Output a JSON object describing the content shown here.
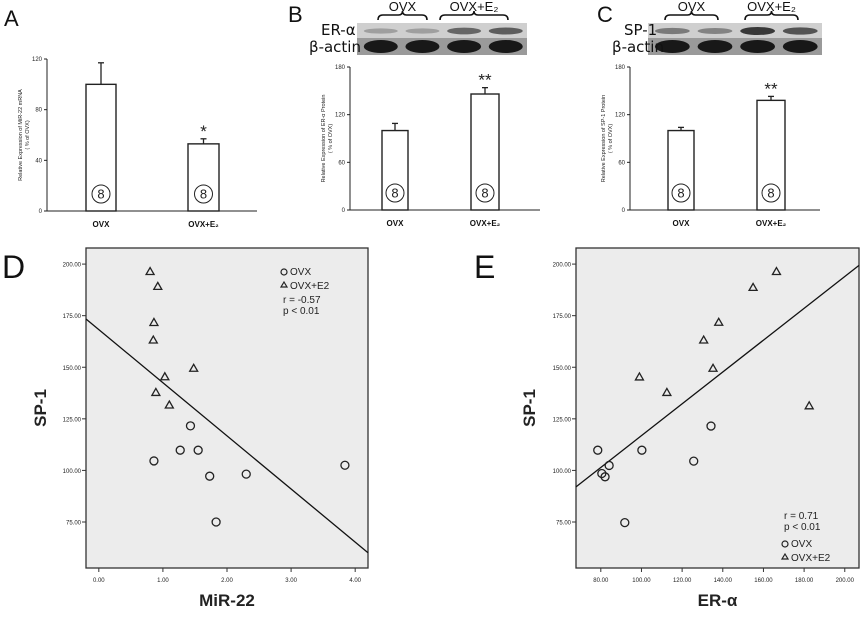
{
  "chart_data": [
    {
      "panel": "A",
      "type": "bar",
      "categories": [
        "OVX",
        "OVX+E2"
      ],
      "category_labels": [
        "OVX",
        "OVX+E₂"
      ],
      "values": [
        100,
        53
      ],
      "error_upper": [
        117,
        57
      ],
      "n_labels": [
        "8",
        "8"
      ],
      "significance": [
        "",
        "*"
      ],
      "ylabel": "Relative Expression of MiR-22 mRNA",
      "ylabel2": "( % of OVX)",
      "ylim": [
        0,
        120
      ],
      "yticks": [
        "0",
        "40",
        "80",
        "120"
      ]
    },
    {
      "panel": "B",
      "type": "bar",
      "categories": [
        "OVX",
        "OVX+E2"
      ],
      "category_labels": [
        "OVX",
        "OVX+E₂"
      ],
      "values": [
        100,
        146
      ],
      "error_upper": [
        109,
        154
      ],
      "n_labels": [
        "8",
        "8"
      ],
      "significance": [
        "",
        "**"
      ],
      "ylabel": "Relative Expression of ER-α Protein",
      "ylabel2": "( % of OVX)",
      "ylim": [
        0,
        180
      ],
      "yticks": [
        "0",
        "60",
        "120",
        "180"
      ],
      "blot": {
        "groups": [
          "OVX",
          "OVX+E₂"
        ],
        "rows": [
          "ER-α",
          "β-actin"
        ],
        "band_intensity": [
          [
            0.25,
            0.25,
            0.55,
            0.6
          ],
          [
            0.95,
            0.95,
            0.95,
            0.95
          ]
        ]
      }
    },
    {
      "panel": "C",
      "type": "bar",
      "categories": [
        "OVX",
        "OVX+E2"
      ],
      "category_labels": [
        "OVX",
        "OVX+E₂"
      ],
      "values": [
        100,
        138
      ],
      "error_upper": [
        104,
        143
      ],
      "n_labels": [
        "8",
        "8"
      ],
      "significance": [
        "",
        "**"
      ],
      "ylabel": "Relative Expression of SP-1 Protein",
      "ylabel2": "( % of OVX)",
      "ylim": [
        0,
        180
      ],
      "yticks": [
        "0",
        "60",
        "120",
        "180"
      ],
      "blot": {
        "groups": [
          "OVX",
          "OVX+E₂"
        ],
        "rows": [
          "SP-1",
          "β-actin"
        ],
        "band_intensity": [
          [
            0.45,
            0.4,
            0.8,
            0.65
          ],
          [
            0.95,
            0.95,
            0.95,
            0.95
          ]
        ]
      }
    },
    {
      "panel": "D",
      "type": "scatter",
      "xlabel": "MiR-22",
      "ylabel": "SP-1",
      "xlim": [
        -0.2,
        4.2
      ],
      "ylim": [
        52.7,
        207.8
      ],
      "xticks": [
        0,
        1,
        2,
        3,
        4
      ],
      "xtick_labels": [
        "0.00",
        "1.00",
        "2.00",
        "3.00",
        "4.00"
      ],
      "yticks": [
        75,
        100,
        125,
        150,
        175,
        200
      ],
      "ytick_labels": [
        "75.00",
        "100.00",
        "125.00",
        "150.00",
        "175.00",
        "200.00"
      ],
      "legend": [
        "OVX",
        "OVX+E2"
      ],
      "legend_position": "top-right",
      "annotation": [
        "r = -0.57",
        "p < 0.01"
      ],
      "series": [
        {
          "name": "OVX",
          "marker": "circle",
          "x": [
            0.86,
            1.27,
            1.43,
            1.55,
            1.73,
            2.3,
            1.83,
            3.84
          ],
          "y": [
            104.6,
            109.8,
            121.6,
            109.8,
            97.2,
            98.2,
            75.0,
            102.5
          ]
        },
        {
          "name": "OVX+E2",
          "marker": "triangle",
          "x": [
            0.8,
            0.92,
            0.86,
            0.85,
            1.03,
            1.48,
            0.89,
            1.1
          ],
          "y": [
            196.4,
            189.2,
            171.7,
            163.2,
            145.4,
            149.5,
            137.8,
            131.7
          ]
        }
      ],
      "fit_line": {
        "x": [
          -0.2,
          4.2
        ],
        "y": [
          173.4,
          60.1
        ]
      }
    },
    {
      "panel": "E",
      "type": "scatter",
      "xlabel": "ER-α",
      "ylabel": "SP-1",
      "xlim": [
        67.8,
        207.0
      ],
      "ylim": [
        52.7,
        207.8
      ],
      "xticks": [
        80,
        100,
        120,
        140,
        160,
        180,
        200
      ],
      "xtick_labels": [
        "80.00",
        "100.00",
        "120.00",
        "140.00",
        "160.00",
        "180.00",
        "200.00"
      ],
      "yticks": [
        75,
        100,
        125,
        150,
        175,
        200
      ],
      "ytick_labels": [
        "75.00",
        "100.00",
        "125.00",
        "150.00",
        "175.00",
        "200.00"
      ],
      "legend": [
        "OVX",
        "OVX+E2"
      ],
      "legend_position": "bottom-right",
      "annotation": [
        "r = 0.71",
        "p < 0.01"
      ],
      "series": [
        {
          "name": "OVX",
          "marker": "circle",
          "x": [
            78.5,
            100.2,
            134.2,
            125.7,
            84.1,
            80.5,
            82.1,
            91.8
          ],
          "y": [
            109.8,
            109.8,
            121.5,
            104.5,
            102.4,
            98.5,
            96.9,
            74.7
          ]
        },
        {
          "name": "OVX+E2",
          "marker": "triangle",
          "x": [
            166.4,
            154.9,
            138.0,
            130.6,
            135.2,
            99.0,
            112.5,
            182.5
          ],
          "y": [
            196.4,
            188.7,
            171.8,
            163.2,
            149.5,
            145.3,
            137.8,
            131.3
          ]
        }
      ],
      "fit_line": {
        "x": [
          67.8,
          207.0
        ],
        "y": [
          92.0,
          199.4
        ]
      }
    }
  ]
}
